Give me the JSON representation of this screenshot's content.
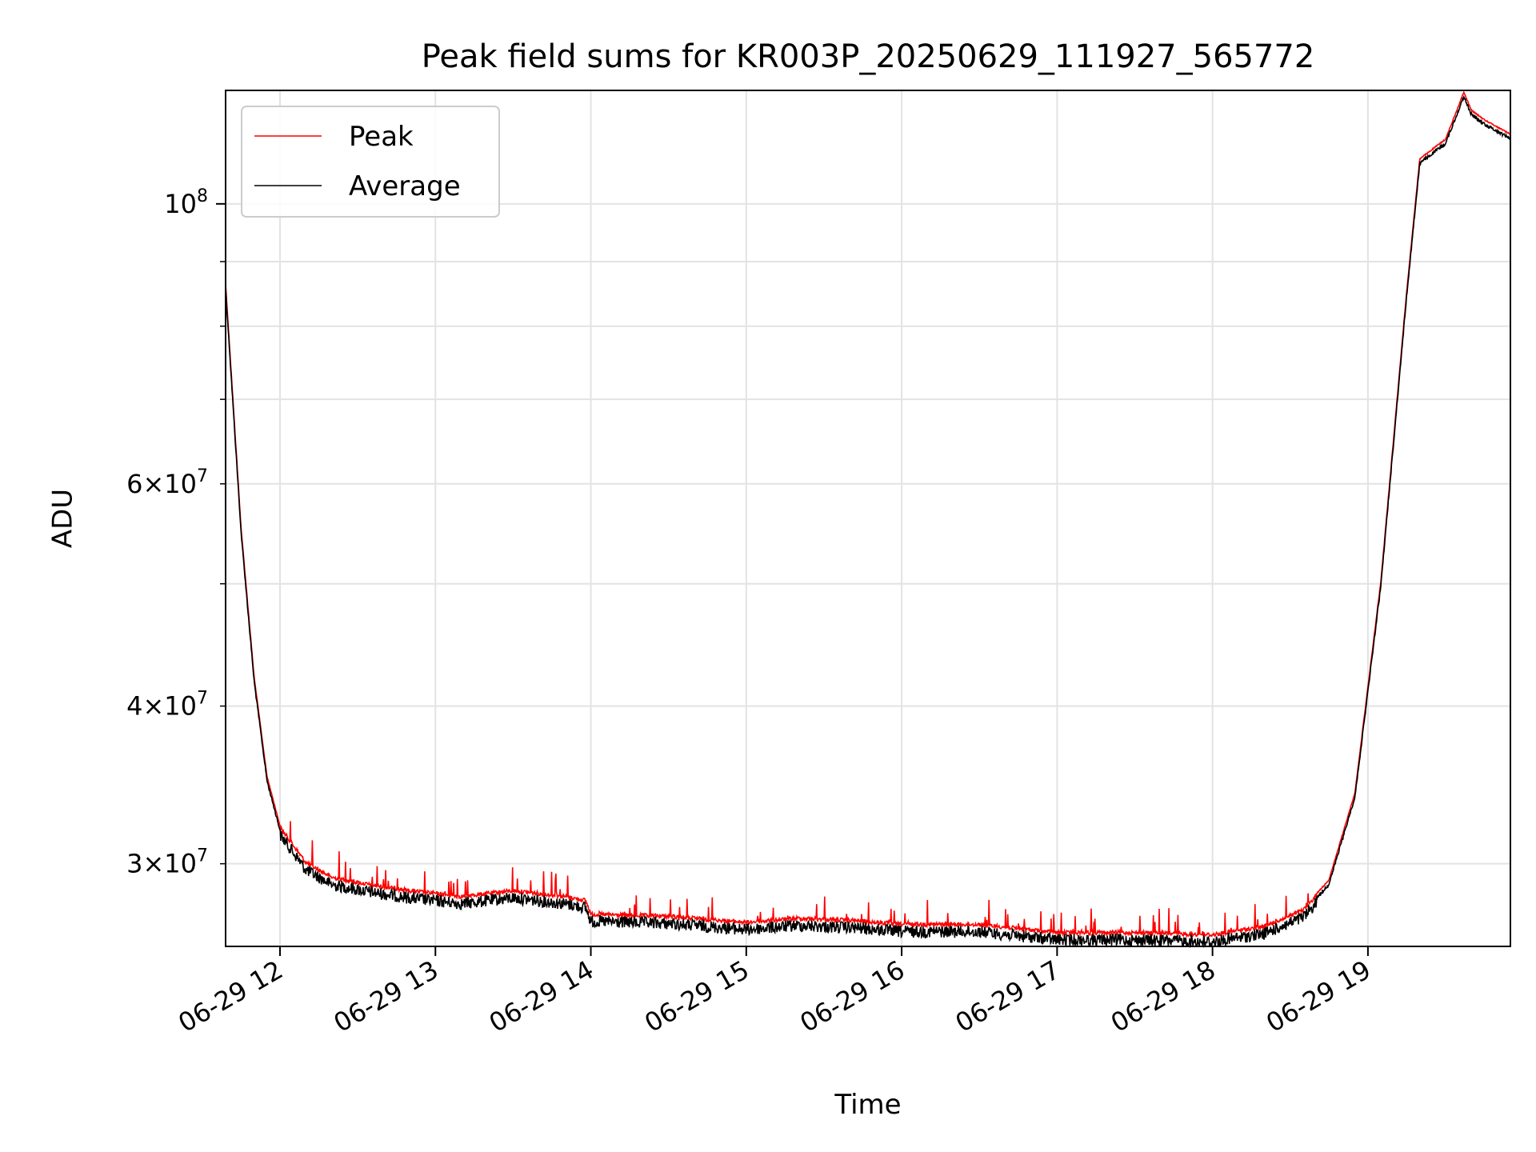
{
  "chart_data": {
    "type": "line",
    "title": "Peak field sums for KR003P_20250629_111927_565772",
    "xlabel": "Time",
    "ylabel": "ADU",
    "yscale": "log",
    "xlim": [
      "2025-06-29 11:39",
      "2025-06-29 19:55"
    ],
    "ylim": [
      25800000,
      123000000
    ],
    "grid": true,
    "legend_position": "top-left",
    "x_ticks": [
      {
        "value": "2025-06-29 12:00",
        "label": "06-29 12"
      },
      {
        "value": "2025-06-29 13:00",
        "label": "06-29 13"
      },
      {
        "value": "2025-06-29 14:00",
        "label": "06-29 14"
      },
      {
        "value": "2025-06-29 15:00",
        "label": "06-29 15"
      },
      {
        "value": "2025-06-29 16:00",
        "label": "06-29 16"
      },
      {
        "value": "2025-06-29 17:00",
        "label": "06-29 17"
      },
      {
        "value": "2025-06-29 18:00",
        "label": "06-29 18"
      },
      {
        "value": "2025-06-29 19:00",
        "label": "06-29 19"
      }
    ],
    "y_major_ticks": [
      {
        "value": 100000000,
        "base": "10",
        "exp": "8"
      }
    ],
    "y_minor_ticks": [
      {
        "value": 30000000,
        "mant": "3",
        "base": "10",
        "exp": "7"
      },
      {
        "value": 40000000,
        "mant": "4",
        "base": "10",
        "exp": "7"
      },
      {
        "value": 50000000
      },
      {
        "value": 60000000,
        "mant": "6",
        "base": "10",
        "exp": "7"
      },
      {
        "value": 70000000
      },
      {
        "value": 80000000
      },
      {
        "value": 90000000
      }
    ],
    "series": [
      {
        "name": "Peak",
        "color": "#ff0000",
        "offset": 1.006,
        "noise": 0.35,
        "spike_prob": 0.05,
        "spike_size": 0.05
      },
      {
        "name": "Average",
        "color": "#000000",
        "offset": 1.0,
        "noise": 1.0,
        "spike_prob": 0.0,
        "spike_size": 0.0
      }
    ],
    "points": [
      [
        "2025-06-29 11:39",
        86000000
      ],
      [
        "2025-06-29 11:45",
        55000000
      ],
      [
        "2025-06-29 11:50",
        42000000
      ],
      [
        "2025-06-29 11:55",
        35000000
      ],
      [
        "2025-06-29 12:00",
        32000000
      ],
      [
        "2025-06-29 12:10",
        30000000
      ],
      [
        "2025-06-29 12:20",
        29200000
      ],
      [
        "2025-06-29 12:35",
        28800000
      ],
      [
        "2025-06-29 12:50",
        28500000
      ],
      [
        "2025-06-29 13:10",
        28200000
      ],
      [
        "2025-06-29 13:30",
        28500000
      ],
      [
        "2025-06-29 13:50",
        28200000
      ],
      [
        "2025-06-29 13:58",
        28000000
      ],
      [
        "2025-06-29 14:00",
        27300000
      ],
      [
        "2025-06-29 14:30",
        27200000
      ],
      [
        "2025-06-29 15:00",
        26900000
      ],
      [
        "2025-06-29 15:20",
        27100000
      ],
      [
        "2025-06-29 15:40",
        27000000
      ],
      [
        "2025-06-29 16:00",
        26800000
      ],
      [
        "2025-06-29 16:30",
        26800000
      ],
      [
        "2025-06-29 17:00",
        26400000
      ],
      [
        "2025-06-29 17:30",
        26400000
      ],
      [
        "2025-06-29 18:00",
        26300000
      ],
      [
        "2025-06-29 18:20",
        26700000
      ],
      [
        "2025-06-29 18:35",
        27500000
      ],
      [
        "2025-06-29 18:45",
        29000000
      ],
      [
        "2025-06-29 18:55",
        34000000
      ],
      [
        "2025-06-29 19:05",
        50000000
      ],
      [
        "2025-06-29 19:15",
        85000000
      ],
      [
        "2025-06-29 19:20",
        108000000
      ],
      [
        "2025-06-29 19:30",
        112000000
      ],
      [
        "2025-06-29 19:40",
        118000000
      ],
      [
        "2025-06-29 19:37",
        122000000
      ],
      [
        "2025-06-29 19:45",
        116000000
      ],
      [
        "2025-06-29 19:55",
        113000000
      ]
    ]
  }
}
